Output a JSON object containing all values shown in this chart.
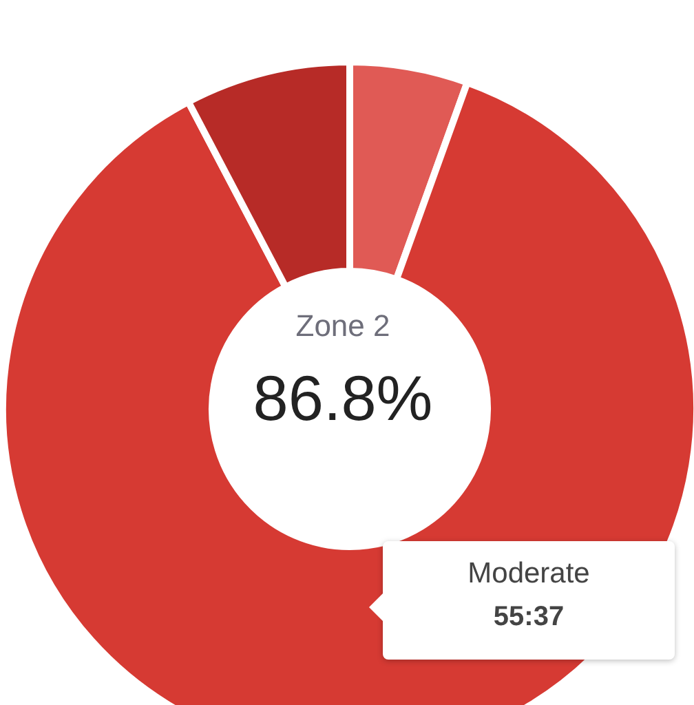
{
  "chart_data": {
    "type": "donut",
    "categories": [
      null,
      "Zone 2",
      null
    ],
    "values": [
      5.5,
      86.8,
      7.7
    ],
    "colors": [
      "#e05a55",
      "#d63a33",
      "#b72b27"
    ],
    "value_labels": [
      null,
      "86.8%",
      null
    ],
    "annotations": [
      "Moderate",
      "55:37"
    ]
  }
}
